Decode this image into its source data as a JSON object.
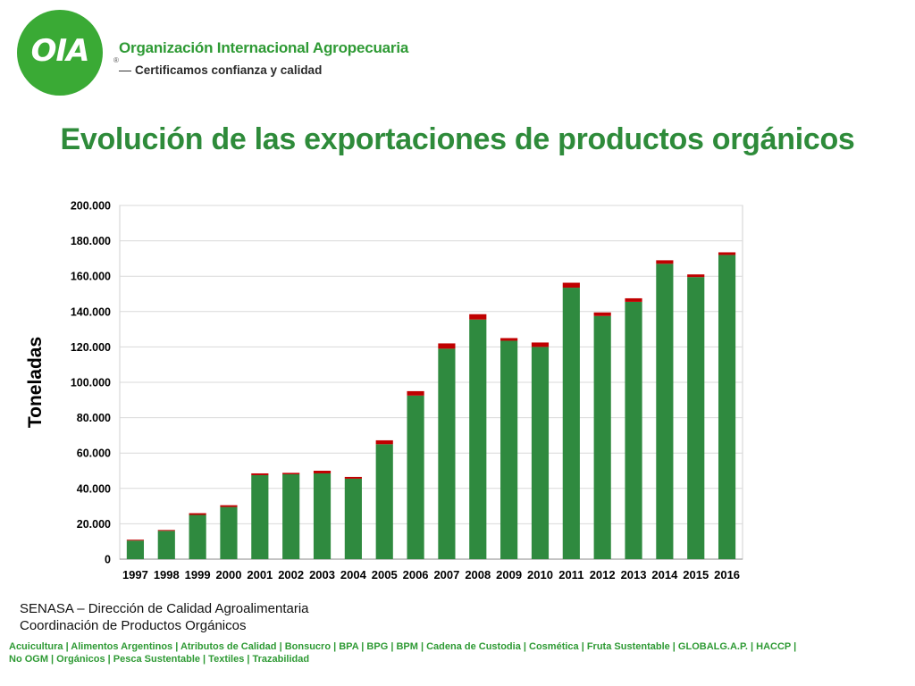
{
  "header": {
    "logo_text": "OIA",
    "logo_reg": "®",
    "org_name": "Organización Internacional Agropecuaria",
    "tagline": "Certificamos confianza y calidad"
  },
  "page_title": "Evolución de las exportaciones de productos orgánicos",
  "chart_data": {
    "type": "bar",
    "stacked": true,
    "categories": [
      "1997",
      "1998",
      "1999",
      "2000",
      "2001",
      "2002",
      "2003",
      "2004",
      "2005",
      "2006",
      "2007",
      "2008",
      "2009",
      "2010",
      "2011",
      "2012",
      "2013",
      "2014",
      "2015",
      "2016"
    ],
    "series": [
      {
        "color": "#2f8a3f",
        "values": [
          10500,
          16000,
          25000,
          29500,
          47500,
          48000,
          48500,
          45500,
          65000,
          92500,
          119000,
          135500,
          123500,
          120000,
          153500,
          137500,
          145500,
          167000,
          159500,
          172000
        ]
      },
      {
        "color": "#c00000",
        "values": [
          500,
          500,
          1000,
          1000,
          1000,
          800,
          1500,
          1000,
          2200,
          2500,
          3000,
          3000,
          1500,
          2500,
          2800,
          2000,
          2000,
          2000,
          1500,
          1500
        ]
      }
    ],
    "ylabel": "Toneladas",
    "ylim": [
      0,
      200000
    ],
    "yticks": [
      "0",
      "20.000",
      "40.000",
      "60.000",
      "80.000",
      "100.000",
      "120.000",
      "140.000",
      "160.000",
      "180.000",
      "200.000"
    ],
    "grid": true
  },
  "source": {
    "line1": "SENASA – Dirección de Calidad Agroalimentaria",
    "line2": "Coordinación de Productos Orgánicos"
  },
  "footer": {
    "line1": "Acuicultura  |  Alimentos Argentinos  |  Atributos de Calidad  |  Bonsucro  |  BPA |  BPG |  BPM  |  Cadena de Custodia  |  Cosmética  |  Fruta Sustentable  | GLOBALG.A.P.  |  HACCP  |",
    "line2": "No OGM  |  Orgánicos |  Pesca Sustentable  | Textiles | Trazabilidad"
  }
}
